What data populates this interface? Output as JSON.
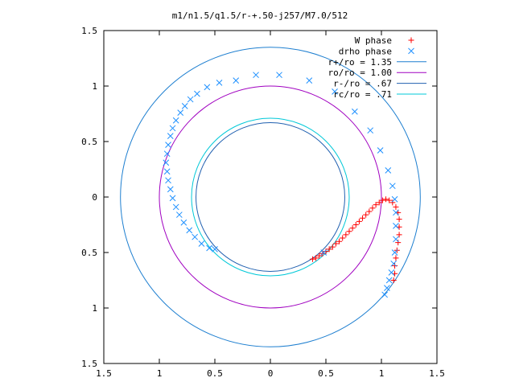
{
  "chart_data": {
    "type": "scatter",
    "title": "m1/n1.5/q1.5/r-+.50-j257/M7.0/512",
    "xlabel": "",
    "ylabel": "",
    "xlim": [
      -1.5,
      1.5
    ],
    "ylim": [
      -1.5,
      1.5
    ],
    "x_tick_labels": [
      "1.5",
      "1",
      "0.5",
      "0",
      "0.5",
      "1",
      "1.5"
    ],
    "y_tick_labels": [
      "1.5",
      "1",
      "0.5",
      "0",
      "0.5",
      "1",
      "1.5"
    ],
    "x_tick_values": [
      -1.5,
      -1,
      -0.5,
      0,
      0.5,
      1,
      1.5
    ],
    "y_tick_values": [
      1.5,
      1,
      0.5,
      0,
      -0.5,
      -1,
      -1.5
    ],
    "legend_position": "top-right",
    "colors": {
      "w_phase": "#ff0000",
      "drho_phase": "#1e90ff",
      "r_plus": "#1e7fd0",
      "ro": "#a000c0",
      "r_minus": "#2060b0",
      "rc": "#00c8d8"
    },
    "series": [
      {
        "name": "W phase",
        "kind": "points",
        "marker": "plus",
        "color": "#ff0000",
        "points": [
          [
            0.38,
            -0.56
          ],
          [
            0.41,
            -0.55
          ],
          [
            0.44,
            -0.53
          ],
          [
            0.47,
            -0.51
          ],
          [
            0.5,
            -0.49
          ],
          [
            0.53,
            -0.47
          ],
          [
            0.56,
            -0.45
          ],
          [
            0.59,
            -0.42
          ],
          [
            0.62,
            -0.4
          ],
          [
            0.65,
            -0.37
          ],
          [
            0.68,
            -0.34
          ],
          [
            0.71,
            -0.31
          ],
          [
            0.74,
            -0.28
          ],
          [
            0.77,
            -0.25
          ],
          [
            0.8,
            -0.22
          ],
          [
            0.83,
            -0.19
          ],
          [
            0.86,
            -0.16
          ],
          [
            0.89,
            -0.13
          ],
          [
            0.92,
            -0.1
          ],
          [
            0.95,
            -0.07
          ],
          [
            0.98,
            -0.05
          ],
          [
            1.01,
            -0.03
          ],
          [
            1.04,
            -0.02
          ],
          [
            1.07,
            -0.03
          ],
          [
            1.1,
            -0.05
          ],
          [
            1.13,
            -0.09
          ],
          [
            1.15,
            -0.14
          ],
          [
            1.16,
            -0.2
          ],
          [
            1.16,
            -0.27
          ],
          [
            1.16,
            -0.34
          ],
          [
            1.15,
            -0.41
          ],
          [
            1.14,
            -0.48
          ],
          [
            1.13,
            -0.55
          ],
          [
            1.12,
            -0.62
          ],
          [
            1.12,
            -0.69
          ],
          [
            1.11,
            -0.75
          ]
        ]
      },
      {
        "name": "drho phase",
        "kind": "points",
        "marker": "cross",
        "color": "#1e90ff",
        "points": [
          [
            0.08,
            1.1
          ],
          [
            -0.13,
            1.1
          ],
          [
            -0.31,
            1.05
          ],
          [
            -0.46,
            1.03
          ],
          [
            -0.57,
            0.99
          ],
          [
            -0.66,
            0.93
          ],
          [
            -0.72,
            0.88
          ],
          [
            -0.77,
            0.82
          ],
          [
            -0.81,
            0.76
          ],
          [
            -0.85,
            0.69
          ],
          [
            -0.88,
            0.62
          ],
          [
            -0.9,
            0.55
          ],
          [
            -0.92,
            0.47
          ],
          [
            -0.93,
            0.39
          ],
          [
            -0.94,
            0.31
          ],
          [
            -0.93,
            0.23
          ],
          [
            -0.92,
            0.15
          ],
          [
            -0.9,
            0.07
          ],
          [
            -0.88,
            -0.01
          ],
          [
            -0.85,
            -0.09
          ],
          [
            -0.82,
            -0.16
          ],
          [
            -0.78,
            -0.23
          ],
          [
            -0.73,
            -0.3
          ],
          [
            -0.68,
            -0.36
          ],
          [
            -0.62,
            -0.42
          ],
          [
            -0.55,
            -0.46
          ],
          [
            -0.5,
            -0.47
          ],
          [
            0.35,
            1.05
          ],
          [
            0.58,
            0.95
          ],
          [
            0.76,
            0.77
          ],
          [
            0.9,
            0.6
          ],
          [
            0.99,
            0.42
          ],
          [
            1.06,
            0.24
          ],
          [
            1.1,
            0.1
          ],
          [
            1.12,
            -0.02
          ],
          [
            1.13,
            -0.14
          ],
          [
            1.13,
            -0.26
          ],
          [
            1.13,
            -0.38
          ],
          [
            1.12,
            -0.5
          ],
          [
            1.11,
            -0.6
          ],
          [
            1.09,
            -0.68
          ],
          [
            1.07,
            -0.75
          ],
          [
            1.05,
            -0.82
          ],
          [
            1.03,
            -0.88
          ],
          [
            0.48,
            -0.5
          ]
        ]
      },
      {
        "name": "r+/ro = 1.35",
        "kind": "circle",
        "radius": 1.35,
        "color": "#1e7fd0"
      },
      {
        "name": "ro/ro = 1.00",
        "kind": "circle",
        "radius": 1.0,
        "color": "#a000c0"
      },
      {
        "name": "r-/ro = .67",
        "kind": "circle",
        "radius": 0.67,
        "color": "#2060b0"
      },
      {
        "name": "rc/ro = .71",
        "kind": "circle",
        "radius": 0.71,
        "color": "#00c8d8"
      }
    ]
  }
}
